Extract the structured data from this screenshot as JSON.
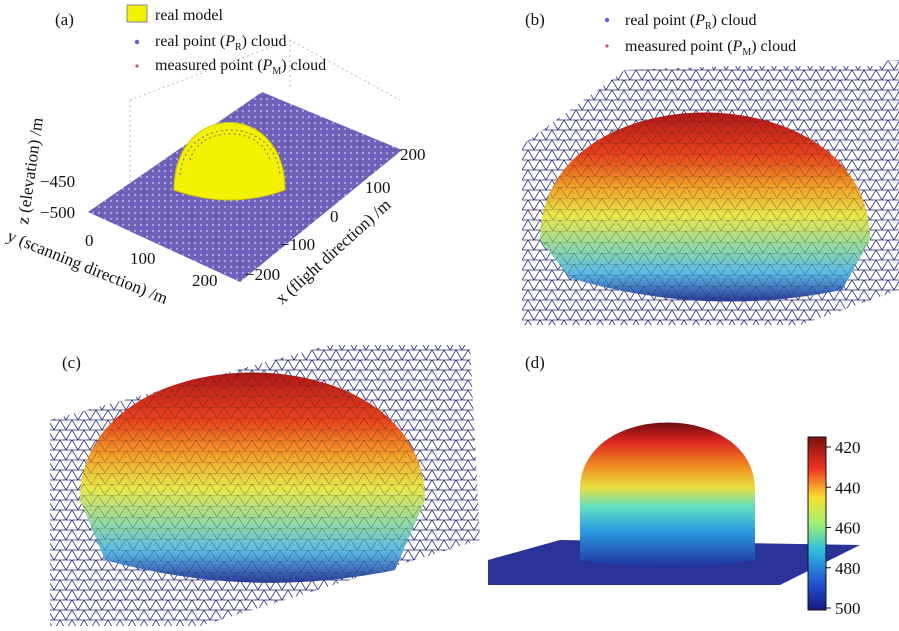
{
  "panels": [
    {
      "label": "(a)",
      "legend": [
        {
          "text": "real model"
        },
        {
          "prefix": "real point (",
          "symbol": "P",
          "subscript": "R",
          "suffix": ") cloud"
        },
        {
          "prefix": "measured point (",
          "symbol": "P",
          "subscript": "M",
          "suffix": ") cloud"
        }
      ],
      "z_axis": {
        "label": "z (elevation) /m",
        "ticks": [
          "−450",
          "−500"
        ]
      },
      "y_axis": {
        "label": "y (scanning direction) /m",
        "ticks": [
          "0",
          "100",
          "200"
        ]
      },
      "x_axis": {
        "label": "x (flight direction) /m",
        "ticks": [
          "200",
          "100",
          "0",
          "−100",
          "−200"
        ]
      }
    },
    {
      "label": "(b)",
      "legend": [
        {
          "prefix": "real point (",
          "symbol": "P",
          "subscript": "R",
          "suffix": ") cloud"
        },
        {
          "prefix": "measured point (",
          "symbol": "P",
          "subscript": "M",
          "suffix": ") cloud"
        }
      ]
    },
    {
      "label": "(c)"
    },
    {
      "label": "(d)",
      "colorbar_ticks": [
        "420",
        "440",
        "460",
        "480",
        "500"
      ]
    }
  ]
}
